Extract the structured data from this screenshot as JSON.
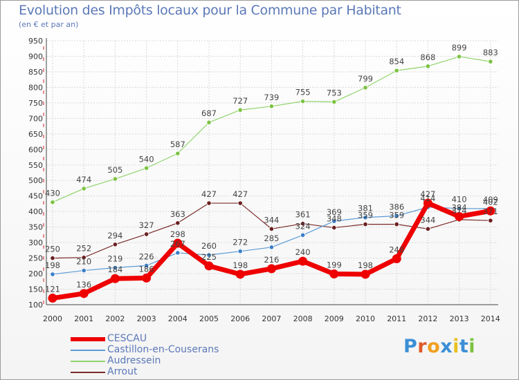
{
  "title": "Evolution des Impôts locaux pour la Commune par Habitant",
  "subtitle": "(en € et par an)",
  "logo": {
    "text": "Proxiti",
    "letter_colors": [
      "#3b8fd6",
      "#e05a2a",
      "#f0a020",
      "#3b8fd6",
      "#e8c020",
      "#3b8fd6",
      "#7cc242"
    ]
  },
  "chart_data": {
    "type": "line",
    "title": "Evolution des Impôts locaux pour la Commune par Habitant",
    "subtitle": "(en € et par an)",
    "xlabel": "",
    "ylabel": "",
    "ylim": [
      100,
      950
    ],
    "y_ticks": [
      100,
      150,
      200,
      250,
      300,
      350,
      400,
      450,
      500,
      550,
      600,
      650,
      700,
      750,
      800,
      850,
      900,
      950
    ],
    "grid": true,
    "legend_position": "bottom-left",
    "x": [
      "2000",
      "2001",
      "2002",
      "2003",
      "2004",
      "2005",
      "2006",
      "2007",
      "2008",
      "2009",
      "2010",
      "2011",
      "2012",
      "2013",
      "2014"
    ],
    "series": [
      {
        "name": "Audressein",
        "color": "#8fd46a",
        "marker_color": "#7cc242",
        "line_width": 1.2,
        "values": [
          430,
          474,
          505,
          540,
          587,
          687,
          727,
          739,
          755,
          753,
          799,
          854,
          868,
          899,
          883
        ],
        "labels": [
          "430",
          "474",
          "505",
          "540",
          "587",
          "687",
          "727",
          "739",
          "755",
          "753",
          "799",
          "854",
          "868",
          "899",
          "883"
        ]
      },
      {
        "name": "Arrout",
        "color": "#7a2a2a",
        "marker_color": "#6b2020",
        "line_width": 1.2,
        "values": [
          250,
          252,
          294,
          327,
          363,
          427,
          427,
          344,
          361,
          348,
          359,
          359,
          344,
          374,
          371
        ],
        "labels": [
          "250",
          "252",
          "294",
          "327",
          "363",
          "427",
          "427",
          "344",
          "361",
          "348",
          "359",
          "359",
          "344",
          "374",
          "371"
        ]
      },
      {
        "name": "Castillon-en-Couserans",
        "color": "#5a9ad6",
        "marker_color": "#3a7fc8",
        "line_width": 1.2,
        "values": [
          198,
          210,
          219,
          226,
          267,
          260,
          272,
          285,
          324,
          369,
          381,
          386,
          414,
          410,
          409
        ],
        "labels": [
          "198",
          "210",
          "219",
          "226",
          "267",
          "260",
          "272",
          "285",
          "324",
          "369",
          "381",
          "386",
          "414",
          "410",
          "409"
        ]
      },
      {
        "name": "CESCAU",
        "color": "#ee0000",
        "marker_color": "#ee0000",
        "line_width": 7,
        "values": [
          121,
          136,
          184,
          186,
          298,
          225,
          198,
          216,
          240,
          199,
          198,
          248,
          427,
          384,
          402
        ],
        "labels": [
          "121",
          "136",
          "184",
          "186",
          "298",
          "225",
          "198",
          "216",
          "240",
          "199",
          "198",
          "248",
          "427",
          "384",
          "402"
        ]
      }
    ],
    "legend_order": [
      "CESCAU",
      "Castillon-en-Couserans",
      "Audressein",
      "Arrout"
    ]
  }
}
